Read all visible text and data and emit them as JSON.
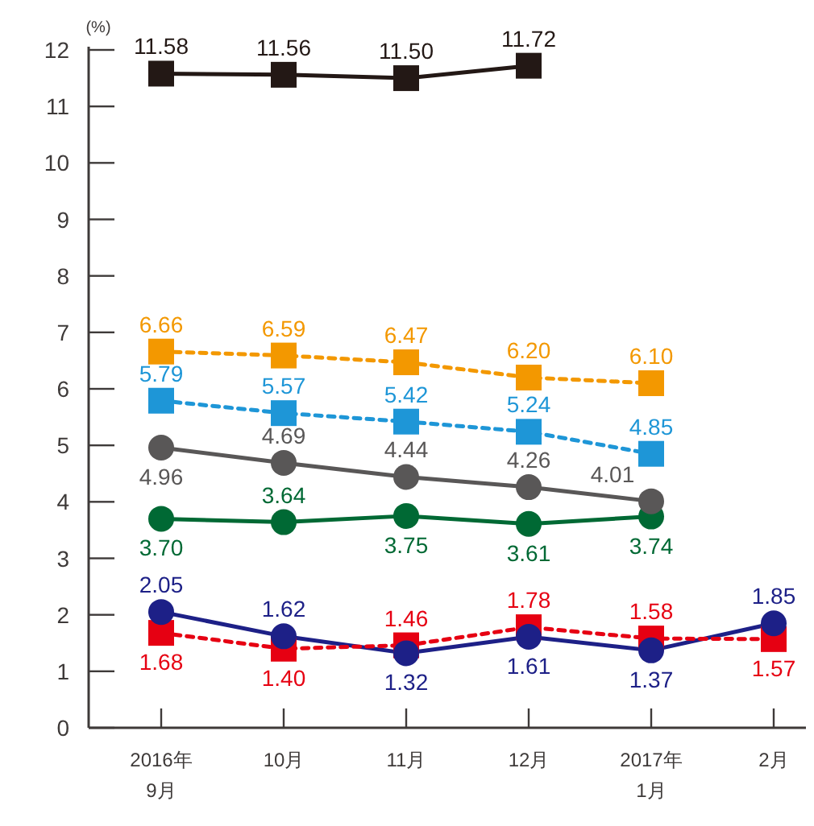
{
  "chart_data": {
    "type": "line",
    "ylabel": "(%)",
    "categories": [
      "2016年\n9月",
      "10月",
      "11月",
      "12月",
      "2017年\n1月",
      "2月"
    ],
    "ylim": [
      0,
      12
    ],
    "yticks": [
      0,
      1,
      2,
      3,
      4,
      5,
      6,
      7,
      8,
      9,
      10,
      11,
      12
    ],
    "series": [
      {
        "color": "#231815",
        "marker": "square",
        "line_style": "solid",
        "values": [
          11.58,
          11.56,
          11.5,
          11.72,
          null,
          null
        ],
        "value_labels": [
          "11.58",
          "11.56",
          "11.50",
          "11.72",
          null,
          null
        ]
      },
      {
        "color": "#f39800",
        "marker": "square",
        "line_style": "dotted",
        "values": [
          6.66,
          6.59,
          6.47,
          6.2,
          6.1,
          null
        ],
        "value_labels": [
          "6.66",
          "6.59",
          "6.47",
          "6.20",
          "6.10",
          null
        ]
      },
      {
        "color": "#1e96d7",
        "marker": "square",
        "line_style": "dotted",
        "values": [
          5.79,
          5.57,
          5.42,
          5.24,
          4.85,
          null
        ],
        "value_labels": [
          "5.79",
          "5.57",
          "5.42",
          "5.24",
          "4.85",
          null
        ]
      },
      {
        "color": "#595757",
        "marker": "circle",
        "line_style": "solid",
        "values": [
          4.96,
          4.69,
          4.44,
          4.26,
          4.01,
          null
        ],
        "value_labels": [
          "4.96",
          "4.69",
          "4.44",
          "4.26",
          "4.01",
          null
        ]
      },
      {
        "color": "#006934",
        "marker": "circle",
        "line_style": "solid",
        "values": [
          3.7,
          3.64,
          3.75,
          3.61,
          3.74,
          null
        ],
        "value_labels": [
          "3.70",
          "3.64",
          "3.75",
          "3.61",
          "3.74",
          null
        ]
      },
      {
        "color": "#1d2087",
        "marker": "circle",
        "line_style": "solid",
        "values": [
          2.05,
          1.62,
          1.32,
          1.61,
          1.37,
          1.85
        ],
        "value_labels": [
          "2.05",
          "1.62",
          "1.32",
          "1.61",
          "1.37",
          "1.85"
        ]
      },
      {
        "color": "#e60012",
        "marker": "square",
        "line_style": "dotted",
        "values": [
          1.68,
          1.4,
          1.46,
          1.78,
          1.58,
          1.57
        ],
        "value_labels": [
          "1.68",
          "1.40",
          "1.46",
          "1.78",
          "1.58",
          "1.57"
        ]
      }
    ]
  }
}
